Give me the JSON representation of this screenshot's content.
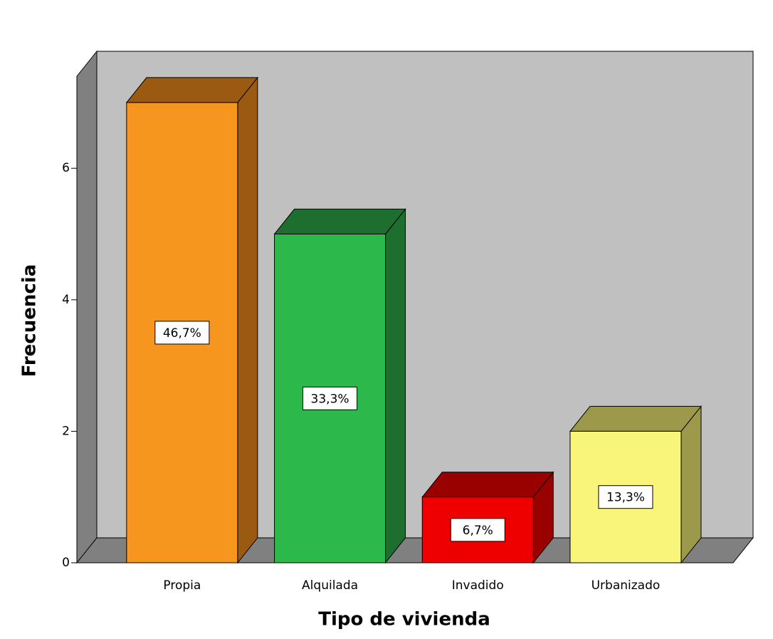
{
  "chart_data": {
    "type": "bar3d",
    "categories": [
      "Propia",
      "Alquilada",
      "Invadido",
      "Urbanizado"
    ],
    "values": [
      7,
      5,
      1,
      2
    ],
    "colors": [
      "#f7961e",
      "#2db84b",
      "#ee0000",
      "#f8f57a"
    ],
    "side_colors": [
      "#9b5a12",
      "#1e6e30",
      "#990000",
      "#9c9a4a"
    ],
    "percentages": [
      46.7,
      33.3,
      6.7,
      13.3
    ],
    "percentage_labels": [
      "46,7%",
      "33,3%",
      "6,7%",
      "13,3%"
    ],
    "x_label": "Tipo de vivienda",
    "y_label": "Frecuencia",
    "ylim": [
      0,
      7.4
    ],
    "yticks": [
      0,
      2,
      4,
      6
    ]
  }
}
